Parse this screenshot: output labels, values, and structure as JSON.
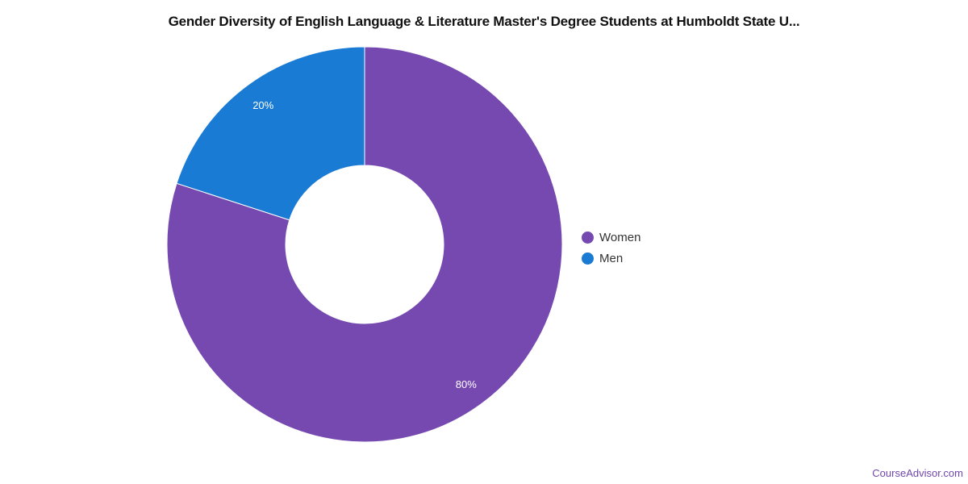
{
  "chart_data": {
    "type": "pie",
    "donut": true,
    "title": "Gender Diversity of English Language & Literature Master's Degree Students at Humboldt State U...",
    "slices": [
      {
        "label": "Women",
        "value": 80,
        "display": "80%",
        "color": "#7549b0"
      },
      {
        "label": "Men",
        "value": 20,
        "display": "20%",
        "color": "#1a7bd5"
      }
    ],
    "legend_position": "right"
  },
  "watermark": "CourseAdvisor.com"
}
